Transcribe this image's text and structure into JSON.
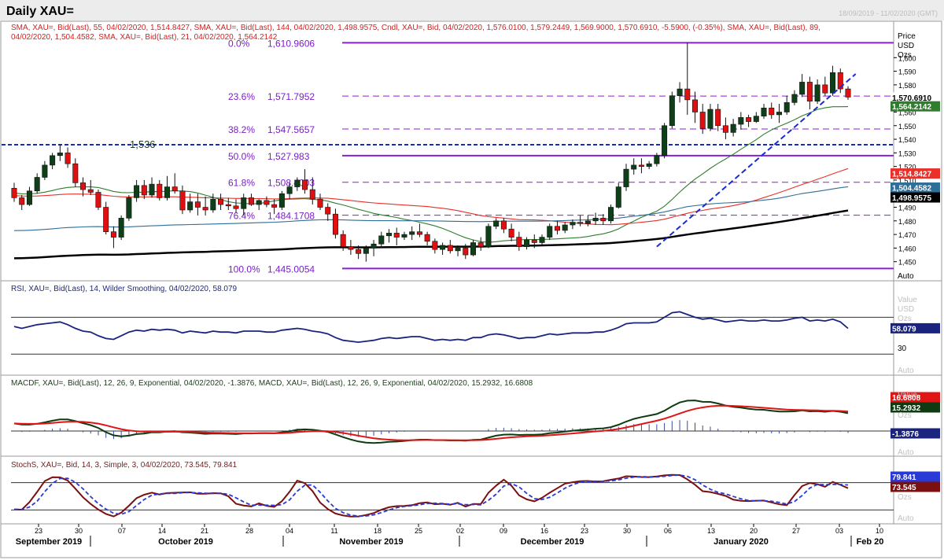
{
  "window": {
    "title": "Daily XAU=",
    "date_range": "18/09/2019 - 11/02/2020 (GMT)"
  },
  "panels": {
    "price": {
      "legend_line1": "SMA, XAU=, Bid(Last), 55, 04/02/2020, 1,514.8427, SMA, XAU=, Bid(Last), 144, 04/02/2020, 1,498.9575, Cndl, XAU=, Bid, 04/02/2020, 1,576.0100, 1,579.2449, 1,569.9000, 1,570.6910, -5.5900, (-0.35%), SMA, XAU=, Bid(Last), 89,",
      "legend_line2": "04/02/2020, 1,504.4582, SMA, XAU=, Bid(Last), 21, 04/02/2020, 1,564.2142",
      "axis_title": [
        "Price",
        "USD",
        "Ozs"
      ],
      "auto": "Auto"
    },
    "rsi": {
      "legend": "RSI, XAU=, Bid(Last), 14, Wilder Smoothing, 04/02/2020, 58.079",
      "axis_title": [
        "Value",
        "USD",
        "Ozs"
      ],
      "tick_30": "30",
      "auto": "Auto"
    },
    "macd": {
      "legend": "MACDF, XAU=, Bid(Last), 12, 26, 9, Exponential, 04/02/2020, -1.3876, MACD, XAU=, Bid(Last), 12, 26, 9, Exponential, 04/02/2020, 15.2932, 16.6808",
      "axis_title": [
        "Value",
        "USD",
        "Ozs"
      ],
      "auto": "Auto"
    },
    "stoch": {
      "legend": "StochS, XAU=, Bid, 14, 3, Simple, 3, 04/02/2020, 73.545, 79.841",
      "axis_title": [
        "Value",
        "USD",
        "Ozs"
      ],
      "auto": "Auto"
    }
  },
  "chart_data": [
    {
      "type": "candlestick",
      "title": "Daily XAU=",
      "ylim": [
        1440,
        1610
      ],
      "price_ticks": [
        "1,600",
        "1,590",
        "1,580",
        "1,570",
        "1,560",
        "1,550",
        "1,540",
        "1,530",
        "1,520",
        "1,510",
        "1,500",
        "1,490",
        "1,480",
        "1,470",
        "1,460",
        "1,450"
      ],
      "day_ticks": [
        "23",
        "30",
        "07",
        "14",
        "21",
        "28",
        "04",
        "11",
        "18",
        "25",
        "02",
        "09",
        "16",
        "23",
        "30",
        "06",
        "13",
        "20",
        "27",
        "03",
        "10"
      ],
      "month_labels": [
        "September 2019",
        "October 2019",
        "November 2019",
        "December 2019",
        "January 2020",
        "Feb 20"
      ],
      "candles_ohlc": [
        [
          1504,
          1508,
          1494,
          1497
        ],
        [
          1497,
          1499,
          1488,
          1492
        ],
        [
          1492,
          1505,
          1491,
          1502
        ],
        [
          1502,
          1515,
          1500,
          1512
        ],
        [
          1512,
          1524,
          1510,
          1521
        ],
        [
          1521,
          1530,
          1518,
          1528
        ],
        [
          1528,
          1536,
          1524,
          1530
        ],
        [
          1530,
          1534,
          1519,
          1522
        ],
        [
          1522,
          1526,
          1505,
          1508
        ],
        [
          1508,
          1512,
          1498,
          1503
        ],
        [
          1503,
          1510,
          1499,
          1501
        ],
        [
          1501,
          1503,
          1488,
          1490
        ],
        [
          1490,
          1494,
          1470,
          1472
        ],
        [
          1472,
          1476,
          1460,
          1468
        ],
        [
          1468,
          1484,
          1466,
          1482
        ],
        [
          1482,
          1499,
          1480,
          1497
        ],
        [
          1497,
          1510,
          1494,
          1506
        ],
        [
          1506,
          1510,
          1496,
          1499
        ],
        [
          1499,
          1512,
          1497,
          1507
        ],
        [
          1507,
          1510,
          1495,
          1497
        ],
        [
          1497,
          1513,
          1495,
          1505
        ],
        [
          1505,
          1515,
          1500,
          1502
        ],
        [
          1502,
          1506,
          1485,
          1488
        ],
        [
          1488,
          1500,
          1486,
          1494
        ],
        [
          1494,
          1500,
          1484,
          1490
        ],
        [
          1490,
          1498,
          1484,
          1488
        ],
        [
          1488,
          1500,
          1486,
          1496
        ],
        [
          1496,
          1500,
          1488,
          1492
        ],
        [
          1492,
          1497,
          1488,
          1491
        ],
        [
          1491,
          1496,
          1486,
          1489
        ],
        [
          1489,
          1500,
          1484,
          1497
        ],
        [
          1497,
          1500,
          1491,
          1492
        ],
        [
          1492,
          1496,
          1488,
          1495
        ],
        [
          1495,
          1498,
          1490,
          1492
        ],
        [
          1492,
          1496,
          1485,
          1490
        ],
        [
          1490,
          1502,
          1488,
          1500
        ],
        [
          1500,
          1508,
          1496,
          1505
        ],
        [
          1505,
          1512,
          1502,
          1510
        ],
        [
          1510,
          1518,
          1500,
          1503
        ],
        [
          1503,
          1512,
          1492,
          1496
        ],
        [
          1496,
          1500,
          1488,
          1490
        ],
        [
          1490,
          1493,
          1480,
          1485
        ],
        [
          1485,
          1489,
          1467,
          1470
        ],
        [
          1470,
          1473,
          1458,
          1461
        ],
        [
          1461,
          1466,
          1455,
          1459
        ],
        [
          1459,
          1462,
          1452,
          1456
        ],
        [
          1456,
          1462,
          1450,
          1460
        ],
        [
          1460,
          1466,
          1454,
          1463
        ],
        [
          1463,
          1472,
          1460,
          1469
        ],
        [
          1469,
          1474,
          1464,
          1471
        ],
        [
          1471,
          1475,
          1462,
          1468
        ],
        [
          1468,
          1472,
          1466,
          1470
        ],
        [
          1470,
          1476,
          1466,
          1472
        ],
        [
          1472,
          1478,
          1468,
          1470
        ],
        [
          1470,
          1472,
          1462,
          1465
        ],
        [
          1465,
          1467,
          1456,
          1459
        ],
        [
          1459,
          1464,
          1455,
          1462
        ],
        [
          1462,
          1466,
          1456,
          1458
        ],
        [
          1458,
          1462,
          1454,
          1460
        ],
        [
          1460,
          1463,
          1452,
          1455
        ],
        [
          1455,
          1466,
          1454,
          1464
        ],
        [
          1464,
          1468,
          1458,
          1461
        ],
        [
          1461,
          1478,
          1460,
          1476
        ],
        [
          1476,
          1482,
          1474,
          1480
        ],
        [
          1480,
          1482,
          1471,
          1474
        ],
        [
          1474,
          1478,
          1465,
          1468
        ],
        [
          1468,
          1472,
          1458,
          1461
        ],
        [
          1461,
          1468,
          1459,
          1466
        ],
        [
          1466,
          1470,
          1460,
          1464
        ],
        [
          1464,
          1470,
          1462,
          1468
        ],
        [
          1468,
          1478,
          1466,
          1476
        ],
        [
          1476,
          1480,
          1470,
          1473
        ],
        [
          1473,
          1479,
          1471,
          1477
        ],
        [
          1477,
          1481,
          1474,
          1479
        ],
        [
          1479,
          1484,
          1476,
          1478
        ],
        [
          1478,
          1484,
          1476,
          1480
        ],
        [
          1480,
          1486,
          1477,
          1482
        ],
        [
          1482,
          1485,
          1477,
          1480
        ],
        [
          1480,
          1492,
          1478,
          1490
        ],
        [
          1490,
          1508,
          1489,
          1505
        ],
        [
          1505,
          1522,
          1502,
          1518
        ],
        [
          1518,
          1526,
          1514,
          1521
        ],
        [
          1521,
          1526,
          1515,
          1520
        ],
        [
          1520,
          1524,
          1518,
          1522
        ],
        [
          1522,
          1530,
          1520,
          1528
        ],
        [
          1528,
          1552,
          1526,
          1550
        ],
        [
          1550,
          1575,
          1548,
          1572
        ],
        [
          1572,
          1582,
          1567,
          1577
        ],
        [
          1577,
          1611,
          1558,
          1569
        ],
        [
          1569,
          1575,
          1552,
          1560
        ],
        [
          1560,
          1566,
          1544,
          1548
        ],
        [
          1548,
          1566,
          1546,
          1562
        ],
        [
          1562,
          1566,
          1546,
          1550
        ],
        [
          1550,
          1556,
          1540,
          1545
        ],
        [
          1545,
          1555,
          1542,
          1551
        ],
        [
          1551,
          1560,
          1547,
          1556
        ],
        [
          1556,
          1558,
          1549,
          1553
        ],
        [
          1553,
          1560,
          1552,
          1557
        ],
        [
          1557,
          1566,
          1555,
          1563
        ],
        [
          1563,
          1567,
          1555,
          1558
        ],
        [
          1558,
          1566,
          1552,
          1560
        ],
        [
          1560,
          1572,
          1558,
          1567
        ],
        [
          1567,
          1576,
          1565,
          1573
        ],
        [
          1573,
          1588,
          1571,
          1582
        ],
        [
          1582,
          1586,
          1562,
          1568
        ],
        [
          1568,
          1584,
          1566,
          1580
        ],
        [
          1580,
          1586,
          1572,
          1574
        ],
        [
          1574,
          1594,
          1572,
          1589
        ],
        [
          1589,
          1592,
          1574,
          1577
        ],
        [
          1577,
          1579,
          1569,
          1571
        ]
      ],
      "sma_lines": [
        {
          "name": "SMA 21",
          "color": "#2f7d2f",
          "last": "1,564.2142"
        },
        {
          "name": "SMA 55",
          "color": "#e8312a",
          "last": "1,514.8427"
        },
        {
          "name": "SMA 89",
          "color": "#2f6e97",
          "last": "1,504.4582"
        },
        {
          "name": "SMA 144",
          "color": "#000000",
          "last": "1,498.9575"
        }
      ],
      "last_close": "1,570.6910",
      "fibonacci": [
        {
          "label": "0.0%",
          "value": 1610.9606,
          "value_text": "1,610.9606"
        },
        {
          "label": "23.6%",
          "value": 1571.7952,
          "value_text": "1,571.7952"
        },
        {
          "label": "38.2%",
          "value": 1547.5657,
          "value_text": "1,547.5657"
        },
        {
          "label": "50.0%",
          "value": 1527.983,
          "value_text": "1,527.983"
        },
        {
          "label": "61.8%",
          "value": 1508.4003,
          "value_text": "1,508.4003"
        },
        {
          "label": "76.4%",
          "value": 1484.1708,
          "value_text": "1,484.1708"
        },
        {
          "label": "100.0%",
          "value": 1445.0054,
          "value_text": "1,445.0054"
        }
      ],
      "resistance": {
        "value": 1536,
        "text": "1,536"
      },
      "trendline_up": {
        "from": [
          84,
          1461
        ],
        "to": [
          110,
          1588
        ]
      }
    },
    {
      "type": "line",
      "name": "RSI 14",
      "ylim": [
        20,
        90
      ],
      "levels": [
        70,
        30
      ],
      "last": "58.079",
      "values": [
        60,
        58,
        60,
        62,
        63,
        64,
        65,
        62,
        58,
        55,
        54,
        50,
        47,
        46,
        50,
        54,
        56,
        55,
        57,
        56,
        57,
        56,
        53,
        55,
        54,
        53,
        55,
        54,
        54,
        53,
        55,
        55,
        55,
        54,
        54,
        56,
        57,
        58,
        57,
        55,
        54,
        52,
        48,
        45,
        44,
        43,
        44,
        45,
        47,
        48,
        47,
        48,
        49,
        49,
        47,
        45,
        46,
        45,
        46,
        45,
        48,
        48,
        51,
        52,
        51,
        49,
        47,
        48,
        48,
        50,
        52,
        51,
        52,
        53,
        53,
        53,
        54,
        54,
        56,
        59,
        63,
        64,
        64,
        64,
        65,
        70,
        75,
        76,
        73,
        70,
        68,
        69,
        67,
        65,
        66,
        67,
        66,
        66,
        67,
        66,
        66,
        67,
        69,
        70,
        66,
        67,
        66,
        68,
        65,
        58
      ]
    },
    {
      "type": "line",
      "name": "MACD 12 26 9",
      "ylim": [
        -15,
        30
      ],
      "macd_last": "15.2932",
      "signal_last": "16.6808",
      "hist_last": "-1.3876"
    },
    {
      "type": "line",
      "name": "StochS 14 3 3",
      "ylim": [
        0,
        100
      ],
      "levels": [
        80,
        20
      ],
      "k_last": "73.545",
      "d_last": "79.841"
    }
  ]
}
